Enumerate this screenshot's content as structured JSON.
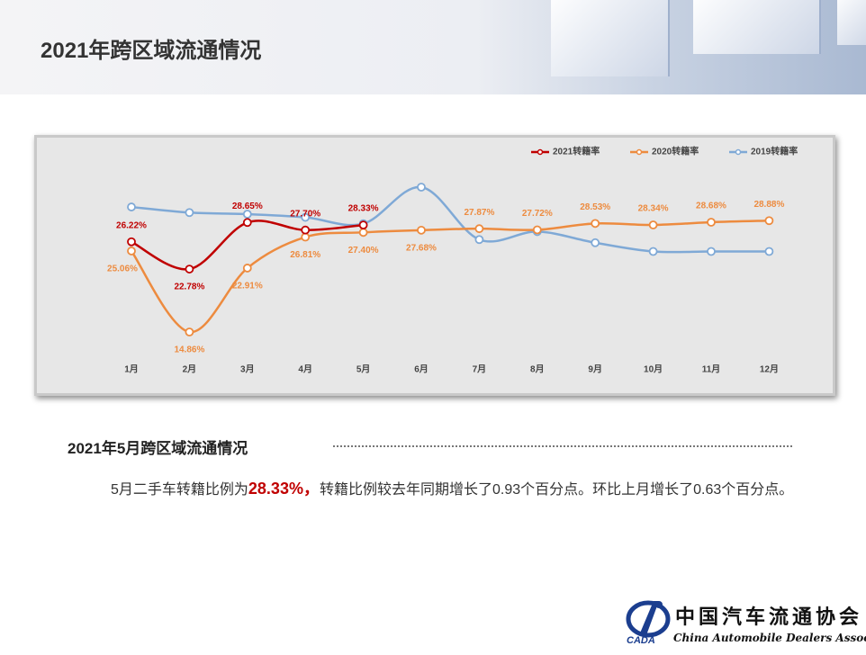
{
  "header": {
    "title": "2021年跨区域流通情况"
  },
  "chart_data": {
    "type": "line",
    "categories": [
      "1月",
      "2月",
      "3月",
      "4月",
      "5月",
      "6月",
      "7月",
      "8月",
      "9月",
      "10月",
      "11月",
      "12月"
    ],
    "series": [
      {
        "name": "2021转籍率",
        "color": "#c00000",
        "values": [
          26.22,
          22.78,
          28.65,
          27.7,
          28.33,
          null,
          null,
          null,
          null,
          null,
          null,
          null
        ],
        "value_labels": [
          "26.22%",
          "22.78%",
          "28.65%",
          "27.70%",
          "28.33%",
          null,
          null,
          null,
          null,
          null,
          null,
          null
        ]
      },
      {
        "name": "2020转籍率",
        "color": "#ed8b3f",
        "values": [
          25.06,
          14.86,
          22.91,
          26.81,
          27.4,
          27.68,
          27.87,
          27.72,
          28.53,
          28.34,
          28.68,
          28.88
        ],
        "value_labels": [
          "25.06%",
          "14.86%",
          "22.91%",
          "26.81%",
          "27.40%",
          "27.68%",
          "27.87%",
          "27.72%",
          "28.53%",
          "28.34%",
          "28.68%",
          "28.88%"
        ]
      },
      {
        "name": "2019转籍率",
        "color": "#7fa9d6",
        "values": [
          30.6,
          29.9,
          29.7,
          29.3,
          28.5,
          33.1,
          26.5,
          27.5,
          26.1,
          25.0,
          25.0,
          25.0
        ]
      }
    ],
    "legend": "top-right"
  },
  "section": {
    "title": "2021年5月跨区域流通情况",
    "text_before": "5月二手车转籍比例为",
    "highlight": "28.33%，",
    "text_after": "转籍比例较去年同期增长了0.93个百分点。环比上月增长了0.63个百分点。"
  },
  "logo": {
    "cn": "中国汽车流通协会",
    "en": "China Automobile Dealers Association",
    "mark": "CADA"
  }
}
